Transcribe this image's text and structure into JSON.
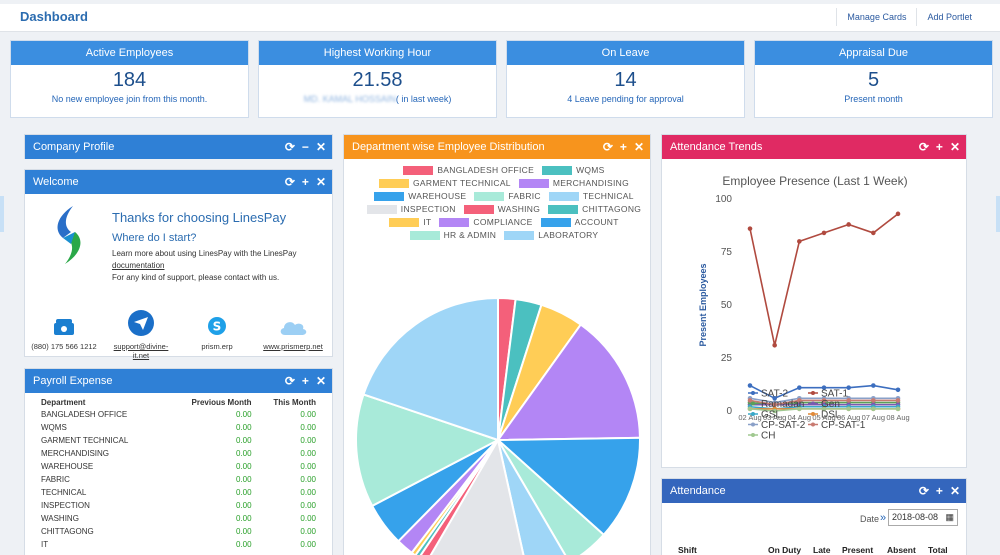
{
  "header": {
    "title": "Dashboard",
    "manage_cards": "Manage Cards",
    "add_portlet": "Add Portlet"
  },
  "stats": [
    {
      "title": "Active Employees",
      "value": "184",
      "sub": "No new employee join from this month.",
      "sub_blur": ""
    },
    {
      "title": "Highest Working Hour",
      "value": "21.58",
      "sub": "( in last week)",
      "sub_blur": "MD. KAMAL HOSSAIN"
    },
    {
      "title": "On Leave",
      "value": "14",
      "sub": "4 Leave pending for approval",
      "sub_blur": ""
    },
    {
      "title": "Appraisal Due",
      "value": "5",
      "sub": "Present month",
      "sub_blur": ""
    }
  ],
  "company_profile": {
    "title": "Company Profile"
  },
  "welcome": {
    "title": "Welcome",
    "heading": "Thanks for choosing LinesPay",
    "subheading": "Where do I start?",
    "line1": "Learn more about using LinesPay with the LinesPay",
    "doc_link": "documentation",
    "line2": "For any kind of support, please contact with us.",
    "phone": "(880) 175 566 1212",
    "email_a": "support@divine-",
    "email_b": "it.net",
    "skype": "prism.erp",
    "website": "www.prismerp.net"
  },
  "payroll": {
    "title": "Payroll Expense",
    "headers": [
      "Department",
      "Previous Month",
      "This Month"
    ],
    "rows": [
      [
        "BANGLADESH OFFICE",
        "0.00",
        "0.00"
      ],
      [
        "WQMS",
        "0.00",
        "0.00"
      ],
      [
        "GARMENT TECHNICAL",
        "0.00",
        "0.00"
      ],
      [
        "MERCHANDISING",
        "0.00",
        "0.00"
      ],
      [
        "WAREHOUSE",
        "0.00",
        "0.00"
      ],
      [
        "FABRIC",
        "0.00",
        "0.00"
      ],
      [
        "TECHNICAL",
        "0.00",
        "0.00"
      ],
      [
        "INSPECTION",
        "0.00",
        "0.00"
      ],
      [
        "WASHING",
        "0.00",
        "0.00"
      ],
      [
        "CHITTAGONG",
        "0.00",
        "0.00"
      ],
      [
        "IT",
        "0.00",
        "0.00"
      ]
    ]
  },
  "department": {
    "title": "Department wise Employee Distribution",
    "legend": [
      {
        "name": "BANGLADESH OFFICE",
        "color": "#f4607a"
      },
      {
        "name": "WQMS",
        "color": "#4bc0c0"
      },
      {
        "name": "GARMENT TECHNICAL",
        "color": "#ffcd56"
      },
      {
        "name": "MERCHANDISING",
        "color": "#b386f5"
      },
      {
        "name": "WAREHOUSE",
        "color": "#36a2eb"
      },
      {
        "name": "FABRIC",
        "color": "#a8ead9"
      },
      {
        "name": "TECHNICAL",
        "color": "#9fd6f7"
      },
      {
        "name": "INSPECTION",
        "color": "#e3e5e9"
      },
      {
        "name": "WASHING",
        "color": "#f4607a"
      },
      {
        "name": "CHITTAGONG",
        "color": "#4bc0c0"
      },
      {
        "name": "IT",
        "color": "#ffcd56"
      },
      {
        "name": "COMPLIANCE",
        "color": "#b386f5"
      },
      {
        "name": "ACCOUNT",
        "color": "#36a2eb"
      },
      {
        "name": "HR & ADMIN",
        "color": "#a8ead9"
      },
      {
        "name": "LABORATORY",
        "color": "#9fd6f7"
      }
    ]
  },
  "attendance_trends": {
    "title": "Attendance Trends"
  },
  "attendance": {
    "title": "Attendance",
    "date_label": "Date",
    "date_value": "2018-08-08",
    "headers": [
      "Shift",
      "On Duty",
      "Late",
      "Present",
      "Absent",
      "Total"
    ]
  },
  "chart_data": [
    {
      "type": "pie",
      "categories": [
        "BANGLADESH OFFICE",
        "WQMS",
        "GARMENT TECHNICAL",
        "MERCHANDISING",
        "WAREHOUSE",
        "FABRIC",
        "TECHNICAL",
        "INSPECTION",
        "WASHING",
        "CHITTAGONG",
        "IT",
        "COMPLIANCE",
        "ACCOUNT",
        "HR & ADMIN",
        "LABORATORY"
      ],
      "values": [
        2,
        3,
        5,
        15,
        12,
        5,
        5,
        12,
        1,
        0.5,
        0.5,
        2,
        5,
        13,
        20
      ],
      "colors": [
        "#f4607a",
        "#4bc0c0",
        "#ffcd56",
        "#b386f5",
        "#36a2eb",
        "#a8ead9",
        "#9fd6f7",
        "#e3e5e9",
        "#f4607a",
        "#4bc0c0",
        "#ffcd56",
        "#b386f5",
        "#36a2eb",
        "#a8ead9",
        "#9fd6f7"
      ],
      "legend": "top"
    },
    {
      "type": "line",
      "title": "Employee Presence (Last 1 Week)",
      "ylabel": "Present Employees",
      "xlabel": "",
      "ylim": [
        0,
        100
      ],
      "yticks": [
        0,
        25,
        50,
        75,
        100
      ],
      "x": [
        "02 Aug",
        "03 Aug",
        "04 Aug",
        "05 Aug",
        "06 Aug",
        "07 Aug",
        "08 Aug"
      ],
      "series": [
        {
          "name": "SAT-2",
          "color": "#3c6ebf",
          "values": [
            12,
            6,
            11,
            11,
            11,
            12,
            10
          ]
        },
        {
          "name": "SAT-1",
          "color": "#b04a3f",
          "values": [
            86,
            31,
            80,
            84,
            88,
            84,
            93
          ]
        },
        {
          "name": "Ramadan",
          "color": "#5aa05a",
          "values": [
            4,
            3,
            4,
            4,
            4,
            4,
            4
          ]
        },
        {
          "name": "Gen",
          "color": "#7a5ab0",
          "values": [
            3,
            3,
            3,
            3,
            3,
            3,
            3
          ]
        },
        {
          "name": "GSL",
          "color": "#3aa8c8",
          "values": [
            2,
            1,
            2,
            2,
            2,
            2,
            2
          ]
        },
        {
          "name": "DSL",
          "color": "#e08a3a",
          "values": [
            1,
            1,
            1,
            1,
            1,
            1,
            1
          ]
        },
        {
          "name": "CP-SAT-2",
          "color": "#8aa0c8",
          "values": [
            6,
            4,
            6,
            6,
            6,
            6,
            6
          ]
        },
        {
          "name": "CP-SAT-1",
          "color": "#c87a70",
          "values": [
            5,
            3,
            5,
            5,
            5,
            5,
            5
          ]
        },
        {
          "name": "CH",
          "color": "#a0c890",
          "values": [
            1,
            0,
            1,
            1,
            1,
            1,
            1
          ]
        }
      ]
    }
  ]
}
